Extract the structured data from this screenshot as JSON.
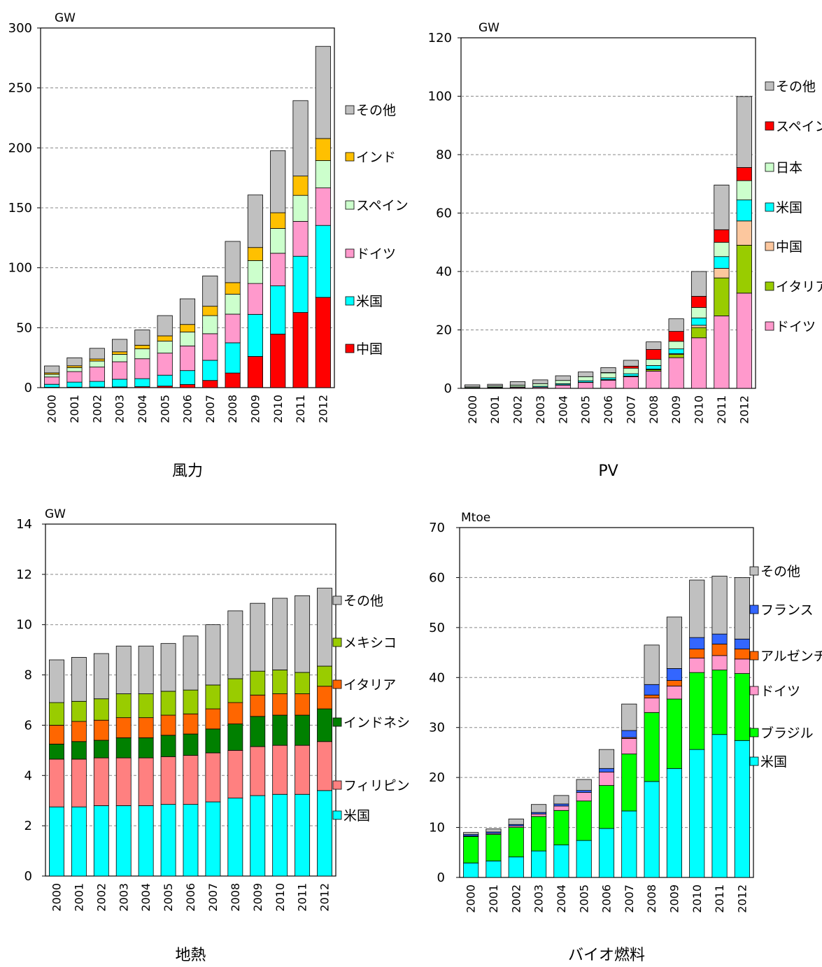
{
  "chart_data": [
    {
      "type": "bar",
      "stacked": true,
      "title": "風力",
      "unit": "GW",
      "ylim": [
        0,
        300
      ],
      "yticks": [
        0,
        50,
        100,
        150,
        200,
        250,
        300
      ],
      "grid": true,
      "legend_position": "right",
      "categories": [
        "2000",
        "2001",
        "2002",
        "2003",
        "2004",
        "2005",
        "2006",
        "2007",
        "2008",
        "2009",
        "2010",
        "2011",
        "2012"
      ],
      "series": [
        {
          "name": "中国",
          "color": "#ff0000",
          "values": [
            0.3,
            0.4,
            0.5,
            0.6,
            0.8,
            1.3,
            2.6,
            6,
            12.2,
            26,
            44.7,
            62.7,
            75.3
          ]
        },
        {
          "name": "米国",
          "color": "#00ffff",
          "values": [
            2.5,
            4.2,
            4.7,
            6.4,
            6.7,
            9.1,
            11.6,
            16.8,
            25.2,
            35.1,
            40.2,
            46.9,
            60
          ]
        },
        {
          "name": "ドイツ",
          "color": "#ff99cc",
          "values": [
            6.1,
            8.8,
            12,
            14.6,
            16.6,
            18.4,
            20.6,
            22.2,
            23.9,
            25.8,
            27.2,
            29.1,
            31.3
          ]
        },
        {
          "name": "スペイン",
          "color": "#ccffcc",
          "values": [
            2.2,
            3.3,
            5,
            6.2,
            8.3,
            10,
            11.6,
            15.1,
            16.7,
            19.1,
            20.7,
            21.7,
            22.8
          ]
        },
        {
          "name": "インド",
          "color": "#ffc000",
          "values": [
            1.2,
            1.5,
            1.7,
            2.1,
            3,
            4.4,
            6.3,
            7.8,
            9.6,
            10.9,
            13.1,
            16.1,
            18.4
          ]
        },
        {
          "name": "その他",
          "color": "#c0c0c0",
          "values": [
            5.8,
            6.7,
            8.9,
            10.4,
            12.7,
            16.9,
            21.4,
            25.3,
            34.4,
            43.8,
            51.8,
            62.9,
            76.9
          ]
        }
      ]
    },
    {
      "type": "bar",
      "stacked": true,
      "title": "PV",
      "unit": "GW",
      "ylim": [
        0,
        120
      ],
      "yticks": [
        0,
        20,
        40,
        60,
        80,
        100,
        120
      ],
      "grid": true,
      "legend_position": "right",
      "categories": [
        "2000",
        "2001",
        "2002",
        "2003",
        "2004",
        "2005",
        "2006",
        "2007",
        "2008",
        "2009",
        "2010",
        "2011",
        "2012"
      ],
      "series": [
        {
          "name": "ドイツ",
          "color": "#ff99cc",
          "values": [
            0.1,
            0.2,
            0.3,
            0.4,
            1.1,
            2,
            2.8,
            4,
            5.9,
            10.5,
            17.3,
            24.8,
            32.6
          ]
        },
        {
          "name": "イタリア",
          "color": "#99cc00",
          "values": [
            0,
            0,
            0,
            0,
            0,
            0,
            0.1,
            0.1,
            0.5,
            1.1,
            3.5,
            13,
            16.4
          ]
        },
        {
          "name": "中国",
          "color": "#fcc79e",
          "values": [
            0,
            0,
            0,
            0,
            0.1,
            0.1,
            0.1,
            0.1,
            0.2,
            0.3,
            0.8,
            3.3,
            8.3
          ]
        },
        {
          "name": "米国",
          "color": "#00ffff",
          "values": [
            0.1,
            0.2,
            0.2,
            0.3,
            0.4,
            0.5,
            0.6,
            0.8,
            1.2,
            1.6,
            2.5,
            4,
            7.2
          ]
        },
        {
          "name": "日本",
          "color": "#ccffcc",
          "values": [
            0.3,
            0.4,
            0.6,
            0.9,
            1.1,
            1.4,
            1.7,
            1.9,
            2.1,
            2.6,
            3.6,
            4.9,
            6.6
          ]
        },
        {
          "name": "スペイン",
          "color": "#ff0000",
          "values": [
            0,
            0,
            0,
            0,
            0,
            0,
            0.1,
            0.7,
            3.4,
            3.4,
            3.8,
            4.3,
            4.5
          ]
        },
        {
          "name": "その他",
          "color": "#c0c0c0",
          "values": [
            0.7,
            0.6,
            1.2,
            1.3,
            1.6,
            1.6,
            1.7,
            2,
            2.6,
            4.3,
            8.5,
            15.3,
            24.3
          ]
        }
      ]
    },
    {
      "type": "bar",
      "stacked": true,
      "title": "地熱",
      "unit": "GW",
      "ylim": [
        0,
        14
      ],
      "yticks": [
        0,
        2,
        4,
        6,
        8,
        10,
        12,
        14
      ],
      "grid": true,
      "legend_position": "right",
      "categories": [
        "2000",
        "2001",
        "2002",
        "2003",
        "2004",
        "2005",
        "2006",
        "2007",
        "2008",
        "2009",
        "2010",
        "2011",
        "2012"
      ],
      "series": [
        {
          "name": "米国",
          "color": "#00ffff",
          "values": [
            2.75,
            2.75,
            2.8,
            2.8,
            2.8,
            2.85,
            2.85,
            2.95,
            3.1,
            3.2,
            3.25,
            3.25,
            3.4
          ]
        },
        {
          "name": "フィリピン",
          "color": "#ff8080",
          "values": [
            1.9,
            1.9,
            1.9,
            1.9,
            1.9,
            1.9,
            1.95,
            1.95,
            1.9,
            1.95,
            1.95,
            1.95,
            1.95
          ]
        },
        {
          "name": "インドネシア",
          "color": "#008000",
          "values": [
            0.6,
            0.7,
            0.7,
            0.8,
            0.8,
            0.85,
            0.85,
            0.95,
            1.05,
            1.2,
            1.2,
            1.2,
            1.3
          ]
        },
        {
          "name": "イタリア",
          "color": "#ff6600",
          "values": [
            0.75,
            0.8,
            0.8,
            0.8,
            0.8,
            0.8,
            0.8,
            0.8,
            0.85,
            0.85,
            0.85,
            0.85,
            0.9
          ]
        },
        {
          "name": "メキシコ",
          "color": "#99cc00",
          "values": [
            0.9,
            0.8,
            0.85,
            0.95,
            0.95,
            0.95,
            0.95,
            0.95,
            0.95,
            0.95,
            0.95,
            0.85,
            0.8
          ]
        },
        {
          "name": "その他",
          "color": "#c0c0c0",
          "values": [
            1.7,
            1.75,
            1.8,
            1.9,
            1.9,
            1.9,
            2.15,
            2.4,
            2.7,
            2.7,
            2.85,
            3.05,
            3.1
          ]
        }
      ]
    },
    {
      "type": "bar",
      "stacked": true,
      "title": "バイオ燃料",
      "unit": "Mtoe",
      "ylim": [
        0,
        70
      ],
      "yticks": [
        0,
        10,
        20,
        30,
        40,
        50,
        60,
        70
      ],
      "grid": true,
      "legend_position": "right",
      "categories": [
        "2000",
        "2001",
        "2002",
        "2003",
        "2004",
        "2005",
        "2006",
        "2007",
        "2008",
        "2009",
        "2010",
        "2011",
        "2012"
      ],
      "series": [
        {
          "name": "米国",
          "color": "#00ffff",
          "values": [
            2.9,
            3.3,
            4.1,
            5.3,
            6.5,
            7.4,
            9.8,
            13.3,
            19.2,
            21.8,
            25.6,
            28.6,
            27.4
          ]
        },
        {
          "name": "ブラジル",
          "color": "#00ff00",
          "values": [
            5.3,
            5.3,
            5.9,
            6.9,
            6.9,
            7.9,
            8.6,
            11.4,
            13.8,
            13.9,
            15.4,
            12.9,
            13.4
          ]
        },
        {
          "name": "ドイツ",
          "color": "#ff99cc",
          "values": [
            0.1,
            0.2,
            0.3,
            0.5,
            0.9,
            1.7,
            2.7,
            3.1,
            2.9,
            2.6,
            2.9,
            2.9,
            2.9
          ]
        },
        {
          "name": "アルゼンチン",
          "color": "#ff6600",
          "values": [
            0,
            0,
            0,
            0,
            0,
            0,
            0,
            0.2,
            0.6,
            1.1,
            1.8,
            2.3,
            2
          ]
        },
        {
          "name": "フランス",
          "color": "#3366ff",
          "values": [
            0.3,
            0.3,
            0.3,
            0.3,
            0.4,
            0.4,
            0.7,
            1.4,
            2.1,
            2.4,
            2.3,
            2,
            2
          ]
        },
        {
          "name": "その他",
          "color": "#c0c0c0",
          "values": [
            0.4,
            0.6,
            1.1,
            1.6,
            1.7,
            2.2,
            3.8,
            5.3,
            7.9,
            10.3,
            11.5,
            11.6,
            12.3
          ]
        }
      ]
    }
  ]
}
